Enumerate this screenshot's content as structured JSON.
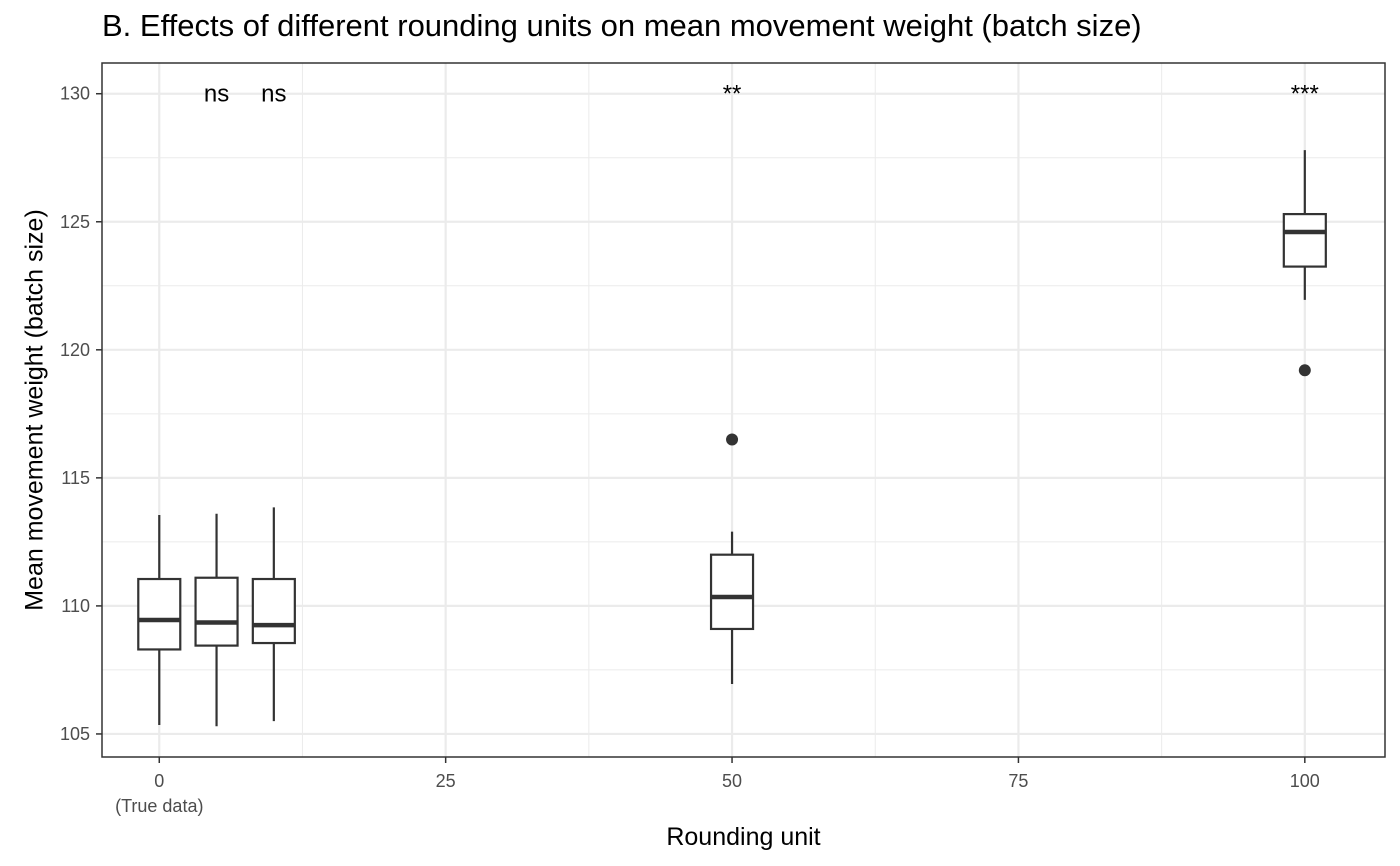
{
  "chart_data": {
    "type": "boxplot",
    "title": "B. Effects of different rounding units on mean movement weight (batch size)",
    "xlabel": "Rounding unit",
    "ylabel": "Mean movement weight (batch size)",
    "xlim": [
      -5,
      107
    ],
    "ylim": [
      104.1,
      131.2
    ],
    "x_ticks": [
      0,
      25,
      50,
      75,
      100
    ],
    "x_tick_labels": [
      "0",
      "25",
      "50",
      "75",
      "100"
    ],
    "x_tick_sublabel": "(True data)",
    "y_ticks": [
      105,
      110,
      115,
      120,
      125,
      130
    ],
    "grid": true,
    "boxes": [
      {
        "x": 0,
        "whisker_low": 105.35,
        "q1": 108.3,
        "median": 109.45,
        "q3": 111.05,
        "whisker_high": 113.55,
        "outliers": [],
        "significance": ""
      },
      {
        "x": 5,
        "whisker_low": 105.3,
        "q1": 108.45,
        "median": 109.35,
        "q3": 111.1,
        "whisker_high": 113.6,
        "outliers": [],
        "significance": "ns"
      },
      {
        "x": 10,
        "whisker_low": 105.5,
        "q1": 108.55,
        "median": 109.25,
        "q3": 111.05,
        "whisker_high": 113.85,
        "outliers": [],
        "significance": "ns"
      },
      {
        "x": 50,
        "whisker_low": 106.95,
        "q1": 109.1,
        "median": 110.35,
        "q3": 112.0,
        "whisker_high": 112.9,
        "outliers": [
          116.5
        ],
        "significance": "**"
      },
      {
        "x": 100,
        "whisker_low": 121.95,
        "q1": 123.25,
        "median": 124.6,
        "q3": 125.3,
        "whisker_high": 127.8,
        "outliers": [
          119.2
        ],
        "significance": "***"
      }
    ],
    "significance_y": 130,
    "colors": {
      "box_stroke": "#333333",
      "grid": "#ebebeb",
      "panel_border": "#333333",
      "background": "#ffffff"
    }
  }
}
